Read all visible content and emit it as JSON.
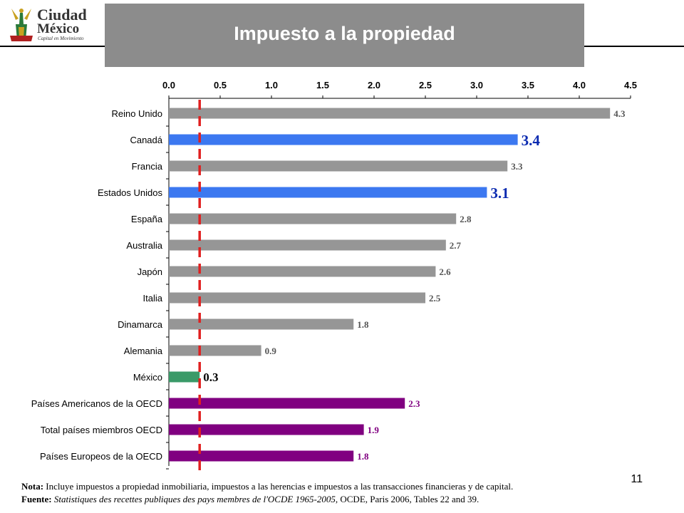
{
  "logo": {
    "line1": "Ciudad",
    "line2": "México",
    "tagline": "Capital en Movimiento"
  },
  "slide_title": "Impuesto a la propiedad",
  "page_number": "11",
  "footnote": {
    "note_label": "Nota:",
    "note_text": "Incluye impuestos a propiedad inmobiliaria, impuestos a las herencias e impuestos a las transacciones financieras y de capital.",
    "source_label": "Fuente:",
    "source_italic": "Statistiques des recettes publiques des pays membres de l'OCDE 1965-2005",
    "source_rest": ", OCDE, Paris 2006, Tables 22 and 39."
  },
  "chart_data": {
    "type": "bar",
    "orientation": "horizontal",
    "title": "",
    "xlabel": "",
    "ylabel": "",
    "xlim": [
      0,
      4.5
    ],
    "xticks": [
      "0.0",
      "0.5",
      "1.0",
      "1.5",
      "2.0",
      "2.5",
      "3.0",
      "3.5",
      "4.0",
      "4.5"
    ],
    "tick_position": "top",
    "grid": false,
    "reference_line": {
      "value": 0.3,
      "style": "dashed",
      "color": "#e02020"
    },
    "categories": [
      "Reino Unido",
      "Canadá",
      "Francia",
      "Estados Unidos",
      "España",
      "Australia",
      "Japón",
      "Italia",
      "Dinamarca",
      "Alemania",
      "México",
      "Países Americanos de la OECD",
      "Total países miembros OECD",
      "Países Europeos de la OECD"
    ],
    "values": [
      4.3,
      3.4,
      3.3,
      3.1,
      2.8,
      2.7,
      2.6,
      2.5,
      1.8,
      0.9,
      0.3,
      2.3,
      1.9,
      1.8
    ],
    "value_labels": [
      "4.3",
      "3.4",
      "3.3",
      "3.1",
      "2.8",
      "2.7",
      "2.6",
      "2.5",
      "1.8",
      "0.9",
      "0.3",
      "2.3",
      "1.9",
      "1.8"
    ],
    "bar_colors": [
      "#969696",
      "#3c78f0",
      "#969696",
      "#3c78f0",
      "#969696",
      "#969696",
      "#969696",
      "#969696",
      "#969696",
      "#969696",
      "#3a9a68",
      "#800080",
      "#800080",
      "#800080"
    ],
    "label_colors": [
      "#555555",
      "#0a2ab0",
      "#555555",
      "#0a2ab0",
      "#555555",
      "#555555",
      "#555555",
      "#555555",
      "#555555",
      "#555555",
      "#000000",
      "#800080",
      "#800080",
      "#800080"
    ],
    "label_emphasis": [
      "normal",
      "large",
      "normal",
      "large",
      "normal",
      "normal",
      "normal",
      "normal",
      "normal",
      "normal",
      "medium",
      "normal",
      "normal",
      "normal"
    ]
  }
}
